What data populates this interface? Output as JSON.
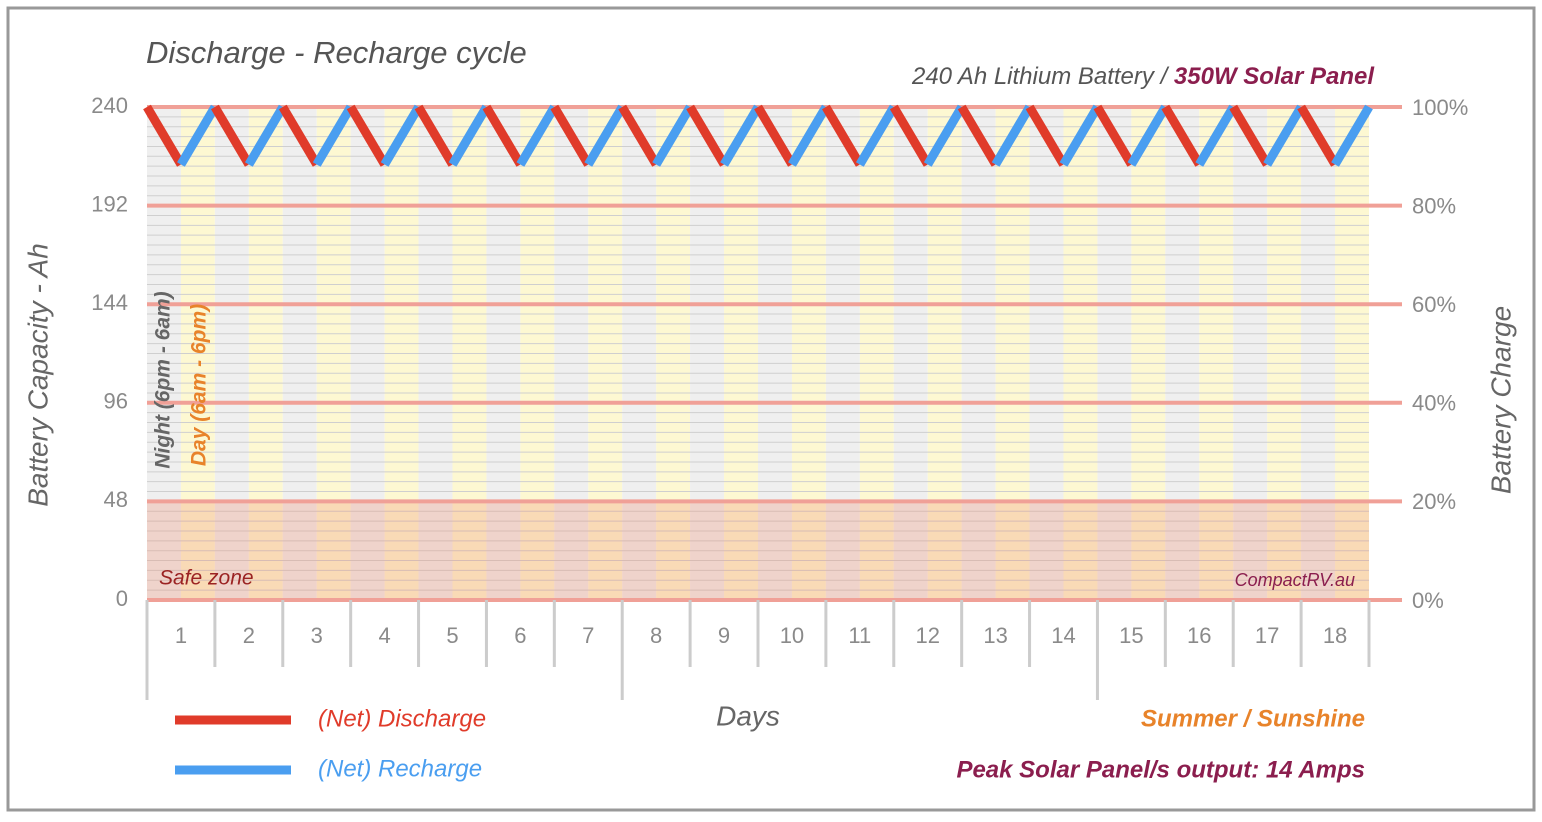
{
  "chart_data": {
    "type": "line",
    "title": "Discharge - Recharge cycle",
    "subtitle": {
      "text": "240 Ah Lithium Battery / ",
      "highlight": "350W Solar Panel"
    },
    "ylabel": "Battery Capacity - Ah",
    "y2label": "Battery Charge",
    "xlabel": "Days",
    "annotations": {
      "night": "Night (6pm - 6am)",
      "day": "Day (6am - 6pm)",
      "safe_zone": "Safe zone",
      "credit": "CompactRV.au",
      "season": "Summer / Sunshine",
      "peak": "Peak Solar Panel/s output: 14 Amps"
    },
    "x": [
      0.5,
      1,
      1.5,
      2,
      2.5,
      3,
      3.5,
      4,
      4.5,
      5,
      5.5,
      6,
      6.5,
      7,
      7.5,
      8,
      8.5,
      9,
      9.5,
      10,
      10.5,
      11,
      11.5,
      12,
      12.5,
      13,
      13.5,
      14,
      14.5,
      15,
      15.5,
      16,
      16.5,
      17,
      17.5,
      18,
      18.5
    ],
    "values": [
      240,
      212,
      240,
      212,
      240,
      212,
      240,
      212,
      240,
      212,
      240,
      212,
      240,
      212,
      240,
      212,
      240,
      212,
      240,
      212,
      240,
      212,
      240,
      212,
      240,
      212,
      240,
      212,
      240,
      212,
      240,
      212,
      240,
      212,
      240,
      212,
      240
    ],
    "series": [
      {
        "name": "(Net) Discharge",
        "color": "#e03b2a"
      },
      {
        "name": "(Net) Recharge",
        "color": "#4a9ef0"
      }
    ],
    "safe_zone_ylim": [
      0,
      48
    ],
    "xlim": [
      0.5,
      18.5
    ],
    "xticks": [
      1,
      2,
      3,
      4,
      5,
      6,
      7,
      8,
      9,
      10,
      11,
      12,
      13,
      14,
      15,
      16,
      17,
      18
    ],
    "ylim": [
      0,
      240
    ],
    "yticks": [
      0,
      48,
      96,
      144,
      192,
      240
    ],
    "y2lim": [
      0,
      100
    ],
    "y2ticks": [
      {
        "value": 0,
        "label": "0%"
      },
      {
        "value": 20,
        "label": "20%"
      },
      {
        "value": 40,
        "label": "40%"
      },
      {
        "value": 60,
        "label": "60%"
      },
      {
        "value": 80,
        "label": "80%"
      },
      {
        "value": 100,
        "label": "100%"
      }
    ],
    "grid": true
  }
}
